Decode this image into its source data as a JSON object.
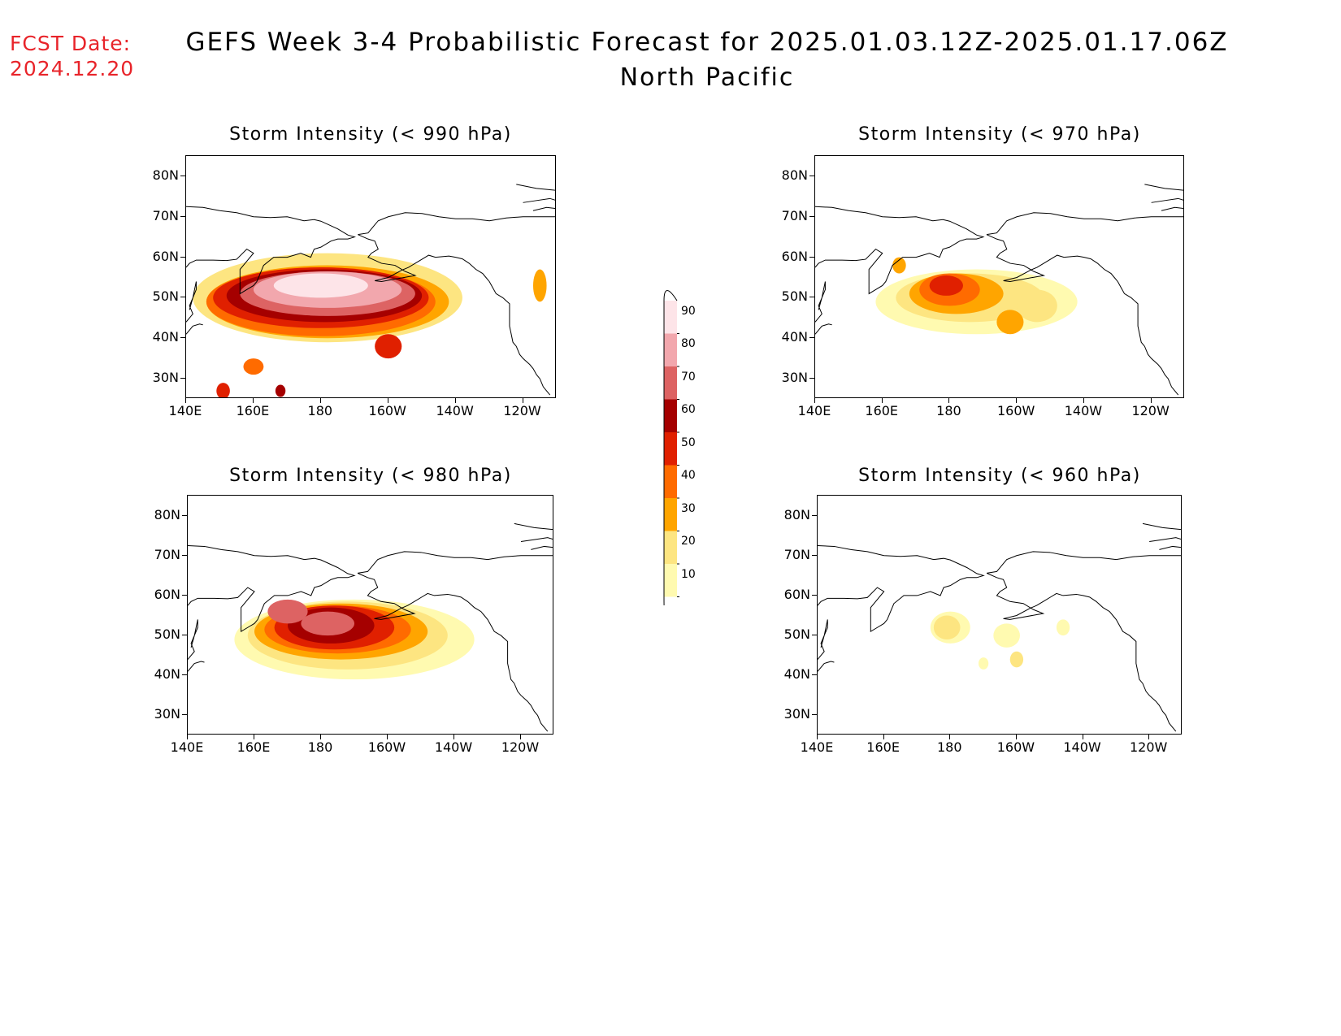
{
  "header": {
    "fcst_label": "FCST Date:",
    "fcst_date": "2024.12.20",
    "title": "GEFS Week 3-4 Probabilistic Forecast for 2025.01.03.12Z-2025.01.17.06Z",
    "subtitle": "North Pacific"
  },
  "axes": {
    "lat_labels": [
      "80N",
      "70N",
      "60N",
      "50N",
      "40N",
      "30N"
    ],
    "lon_labels": [
      "140E",
      "160E",
      "180",
      "160W",
      "140W",
      "120W"
    ]
  },
  "panels": [
    {
      "id": "p990",
      "title": "Storm Intensity (< 990 hPa)",
      "max_probability_class": 90
    },
    {
      "id": "p970",
      "title": "Storm Intensity (< 970 hPa)",
      "max_probability_class": 60
    },
    {
      "id": "p980",
      "title": "Storm Intensity (< 980 hPa)",
      "max_probability_class": 80
    },
    {
      "id": "p960",
      "title": "Storm Intensity (< 960 hPa)",
      "max_probability_class": 30
    }
  ],
  "colorbar": {
    "levels": [
      "10",
      "20",
      "30",
      "40",
      "50",
      "60",
      "70",
      "80",
      "90"
    ],
    "colors": [
      "#fffab0",
      "#fde581",
      "#ffa500",
      "#ff6b00",
      "#e02000",
      "#a50000",
      "#dd6363",
      "#f2a7ad",
      "#fde4e8"
    ]
  },
  "map": {
    "lat_range": [
      25,
      85
    ],
    "lon_range_east": [
      140,
      250
    ]
  }
}
